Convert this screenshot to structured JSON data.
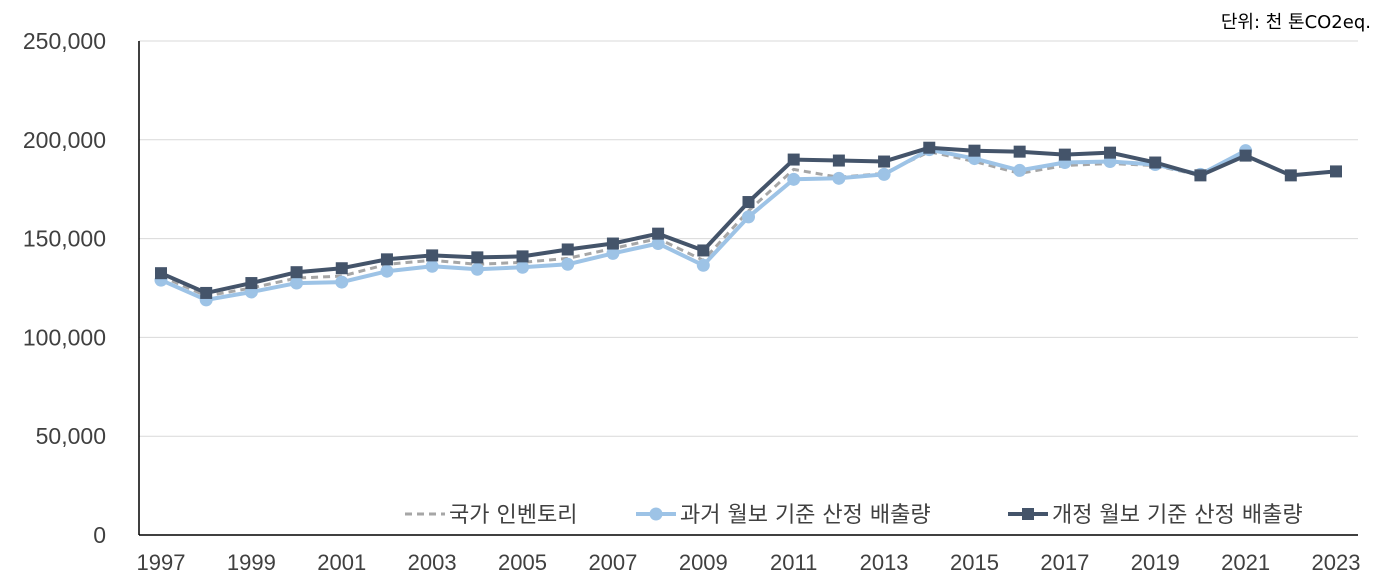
{
  "chart_data": {
    "type": "line",
    "unit_label": "단위: 천 톤CO2eq.",
    "x": [
      1997,
      1998,
      1999,
      2000,
      2001,
      2002,
      2003,
      2004,
      2005,
      2006,
      2007,
      2008,
      2009,
      2010,
      2011,
      2012,
      2013,
      2014,
      2015,
      2016,
      2017,
      2018,
      2019,
      2020,
      2021,
      2022,
      2023
    ],
    "x_tick_labels": [
      "1997",
      "1999",
      "2001",
      "2003",
      "2005",
      "2007",
      "2009",
      "2011",
      "2013",
      "2015",
      "2017",
      "2019",
      "2021",
      "2023"
    ],
    "y_tick_labels": [
      "0",
      "50,000",
      "100,000",
      "150,000",
      "200,000",
      "250,000"
    ],
    "ylim": [
      0,
      250000
    ],
    "grid": true,
    "legend_position": "bottom-right",
    "series": [
      {
        "name": "국가 인벤토리",
        "color": "#A6A6A6",
        "style": "dashed",
        "marker": "none",
        "values": [
          131000,
          121000,
          125000,
          130000,
          131000,
          137000,
          139000,
          137000,
          138000,
          140000,
          145000,
          150000,
          139000,
          164000,
          185000,
          181000,
          183000,
          194000,
          189000,
          183000,
          187000,
          188000,
          187000,
          182000,
          null,
          null,
          null
        ]
      },
      {
        "name": "과거 월보 기준 산정 배출량",
        "color": "#9DC3E6",
        "style": "solid",
        "marker": "circle",
        "values": [
          129000,
          119000,
          123000,
          127500,
          128000,
          133500,
          136000,
          134500,
          135500,
          137000,
          142500,
          147500,
          136500,
          161000,
          180000,
          180500,
          182500,
          195000,
          190500,
          184500,
          188500,
          189000,
          187500,
          182500,
          194500,
          null,
          null
        ]
      },
      {
        "name": "개정 월보 기준 산정 배출량",
        "color": "#44546A",
        "style": "solid",
        "marker": "square",
        "values": [
          132500,
          122500,
          127500,
          133000,
          135000,
          139500,
          141500,
          140500,
          141000,
          144500,
          147500,
          152500,
          144000,
          168500,
          190000,
          189500,
          189000,
          196000,
          194500,
          194000,
          192500,
          193500,
          188500,
          182000,
          192000,
          182000,
          184000
        ]
      }
    ]
  }
}
